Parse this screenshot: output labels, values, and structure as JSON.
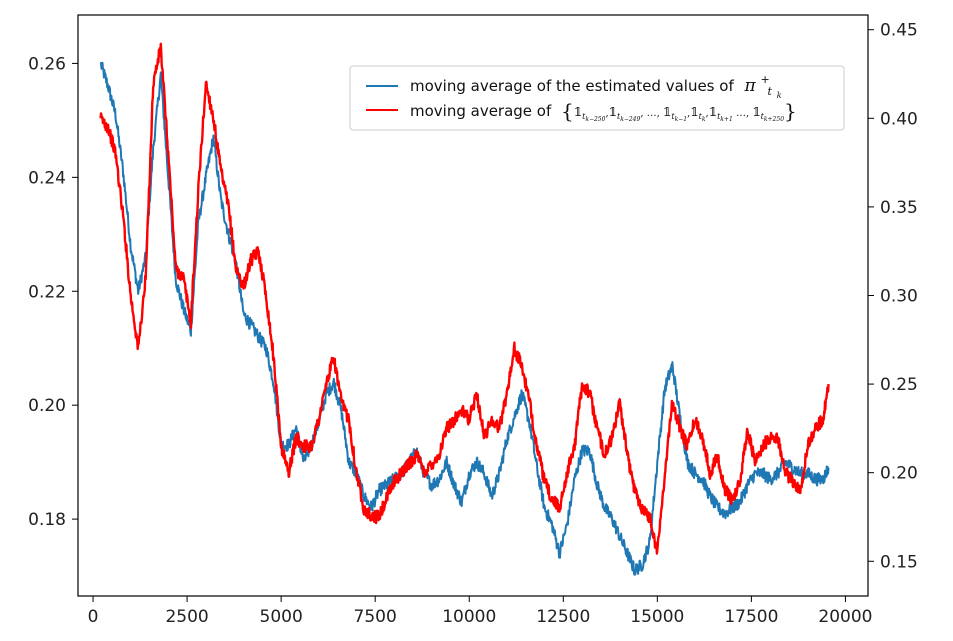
{
  "chart_data": {
    "type": "line",
    "title": "",
    "xlabel": "",
    "ylabel": "",
    "xlim": [
      -400,
      20600
    ],
    "x_ticks": [
      0,
      2500,
      5000,
      7500,
      10000,
      12500,
      15000,
      17500,
      20000
    ],
    "x_tick_labels": [
      "0",
      "2500",
      "5000",
      "7500",
      "10000",
      "12500",
      "15000",
      "17500",
      "20000"
    ],
    "ylim_left": [
      0.1665,
      0.2685
    ],
    "y_ticks_left": [
      0.18,
      0.2,
      0.22,
      0.24,
      0.26
    ],
    "y_tick_labels_left": [
      "0.18",
      "0.20",
      "0.22",
      "0.24",
      "0.26"
    ],
    "ylim_right": [
      0.1304,
      0.4583
    ],
    "y_ticks_right": [
      0.15,
      0.2,
      0.25,
      0.3,
      0.35,
      0.4,
      0.45
    ],
    "y_tick_labels_right": [
      "0.15",
      "0.20",
      "0.25",
      "0.30",
      "0.35",
      "0.40",
      "0.45"
    ],
    "grid": false,
    "legend_position": "top-right",
    "legend": {
      "blue_prefix": "moving average of the estimated values of",
      "blue_math": "π",
      "blue_sup": "+",
      "blue_sub": "t",
      "blue_subsub": "k",
      "red_prefix": "moving average of",
      "red_set": "{𝟙t(k−250), 𝟙t(k−249), …, 𝟙t(k−1), 𝟙tk, 𝟙t(k+1) …, 𝟙t(k+250)}",
      "red_items": [
        "𝟙",
        "t",
        "k−250",
        ",",
        "𝟙",
        "t",
        "k−249",
        ", …, ",
        "𝟙",
        "t",
        "k−1",
        ",",
        "𝟙",
        "t",
        "k",
        ",",
        "𝟙",
        "t",
        "k+1",
        " …, ",
        "𝟙",
        "t",
        "k+250"
      ]
    },
    "series": [
      {
        "axis": "left",
        "color": "#1f77b4",
        "x": [
          200,
          400,
          600,
          800,
          1000,
          1200,
          1400,
          1600,
          1800,
          2000,
          2200,
          2400,
          2600,
          2800,
          3000,
          3200,
          3400,
          3600,
          3800,
          4000,
          4200,
          4400,
          4600,
          4800,
          5000,
          5200,
          5400,
          5600,
          5800,
          6000,
          6200,
          6400,
          6600,
          6800,
          7000,
          7200,
          7400,
          7600,
          7800,
          8000,
          8200,
          8400,
          8600,
          8800,
          9000,
          9200,
          9400,
          9600,
          9800,
          10000,
          10200,
          10400,
          10600,
          10800,
          11000,
          11200,
          11400,
          11600,
          11800,
          12000,
          12200,
          12400,
          12600,
          12800,
          13000,
          13200,
          13400,
          13600,
          13800,
          14000,
          14200,
          14400,
          14600,
          14800,
          15000,
          15200,
          15400,
          15600,
          15800,
          16000,
          16200,
          16400,
          16600,
          16800,
          17000,
          17200,
          17400,
          17600,
          17800,
          18000,
          18200,
          18400,
          18600,
          18800,
          19000,
          19200,
          19400,
          19550
        ],
        "values": [
          0.26,
          0.256,
          0.251,
          0.241,
          0.228,
          0.22,
          0.226,
          0.245,
          0.258,
          0.24,
          0.222,
          0.217,
          0.213,
          0.232,
          0.24,
          0.247,
          0.236,
          0.23,
          0.225,
          0.216,
          0.214,
          0.212,
          0.21,
          0.204,
          0.193,
          0.193,
          0.196,
          0.19,
          0.193,
          0.197,
          0.202,
          0.204,
          0.199,
          0.19,
          0.188,
          0.184,
          0.182,
          0.185,
          0.186,
          0.187,
          0.188,
          0.19,
          0.192,
          0.188,
          0.186,
          0.187,
          0.19,
          0.186,
          0.183,
          0.188,
          0.19,
          0.188,
          0.184,
          0.188,
          0.194,
          0.198,
          0.202,
          0.197,
          0.189,
          0.182,
          0.179,
          0.174,
          0.179,
          0.187,
          0.192,
          0.192,
          0.186,
          0.182,
          0.18,
          0.177,
          0.174,
          0.171,
          0.172,
          0.176,
          0.19,
          0.203,
          0.207,
          0.198,
          0.19,
          0.188,
          0.187,
          0.184,
          0.182,
          0.181,
          0.182,
          0.183,
          0.186,
          0.188,
          0.188,
          0.187,
          0.188,
          0.19,
          0.189,
          0.188,
          0.188,
          0.187,
          0.187,
          0.189
        ]
      },
      {
        "axis": "right",
        "color": "#ff0000",
        "x": [
          200,
          400,
          600,
          800,
          1000,
          1200,
          1400,
          1600,
          1800,
          2000,
          2200,
          2400,
          2600,
          2800,
          3000,
          3200,
          3400,
          3600,
          3800,
          4000,
          4200,
          4400,
          4600,
          4800,
          5000,
          5200,
          5400,
          5600,
          5800,
          6000,
          6200,
          6400,
          6600,
          6800,
          7000,
          7200,
          7400,
          7600,
          7800,
          8000,
          8200,
          8400,
          8600,
          8800,
          9000,
          9200,
          9400,
          9600,
          9800,
          10000,
          10200,
          10400,
          10600,
          10800,
          11000,
          11200,
          11400,
          11600,
          11800,
          12000,
          12200,
          12400,
          12600,
          12800,
          13000,
          13200,
          13400,
          13600,
          13800,
          14000,
          14200,
          14400,
          14600,
          14800,
          15000,
          15200,
          15400,
          15600,
          15800,
          16000,
          16200,
          16400,
          16600,
          16800,
          17000,
          17200,
          17400,
          17600,
          17800,
          18000,
          18200,
          18400,
          18600,
          18800,
          19000,
          19200,
          19400,
          19550
        ],
        "values": [
          0.4,
          0.395,
          0.38,
          0.345,
          0.3,
          0.27,
          0.31,
          0.42,
          0.44,
          0.38,
          0.315,
          0.31,
          0.285,
          0.36,
          0.42,
          0.4,
          0.37,
          0.35,
          0.315,
          0.305,
          0.32,
          0.325,
          0.3,
          0.265,
          0.215,
          0.2,
          0.22,
          0.215,
          0.215,
          0.23,
          0.25,
          0.265,
          0.24,
          0.23,
          0.2,
          0.18,
          0.175,
          0.175,
          0.185,
          0.195,
          0.2,
          0.205,
          0.21,
          0.2,
          0.205,
          0.21,
          0.225,
          0.23,
          0.235,
          0.23,
          0.245,
          0.22,
          0.23,
          0.225,
          0.245,
          0.27,
          0.26,
          0.24,
          0.215,
          0.195,
          0.185,
          0.18,
          0.2,
          0.215,
          0.25,
          0.245,
          0.225,
          0.21,
          0.22,
          0.24,
          0.21,
          0.19,
          0.18,
          0.175,
          0.155,
          0.2,
          0.24,
          0.225,
          0.215,
          0.23,
          0.22,
          0.2,
          0.21,
          0.19,
          0.185,
          0.195,
          0.225,
          0.205,
          0.215,
          0.22,
          0.22,
          0.2,
          0.195,
          0.19,
          0.215,
          0.225,
          0.23,
          0.25
        ]
      }
    ]
  }
}
